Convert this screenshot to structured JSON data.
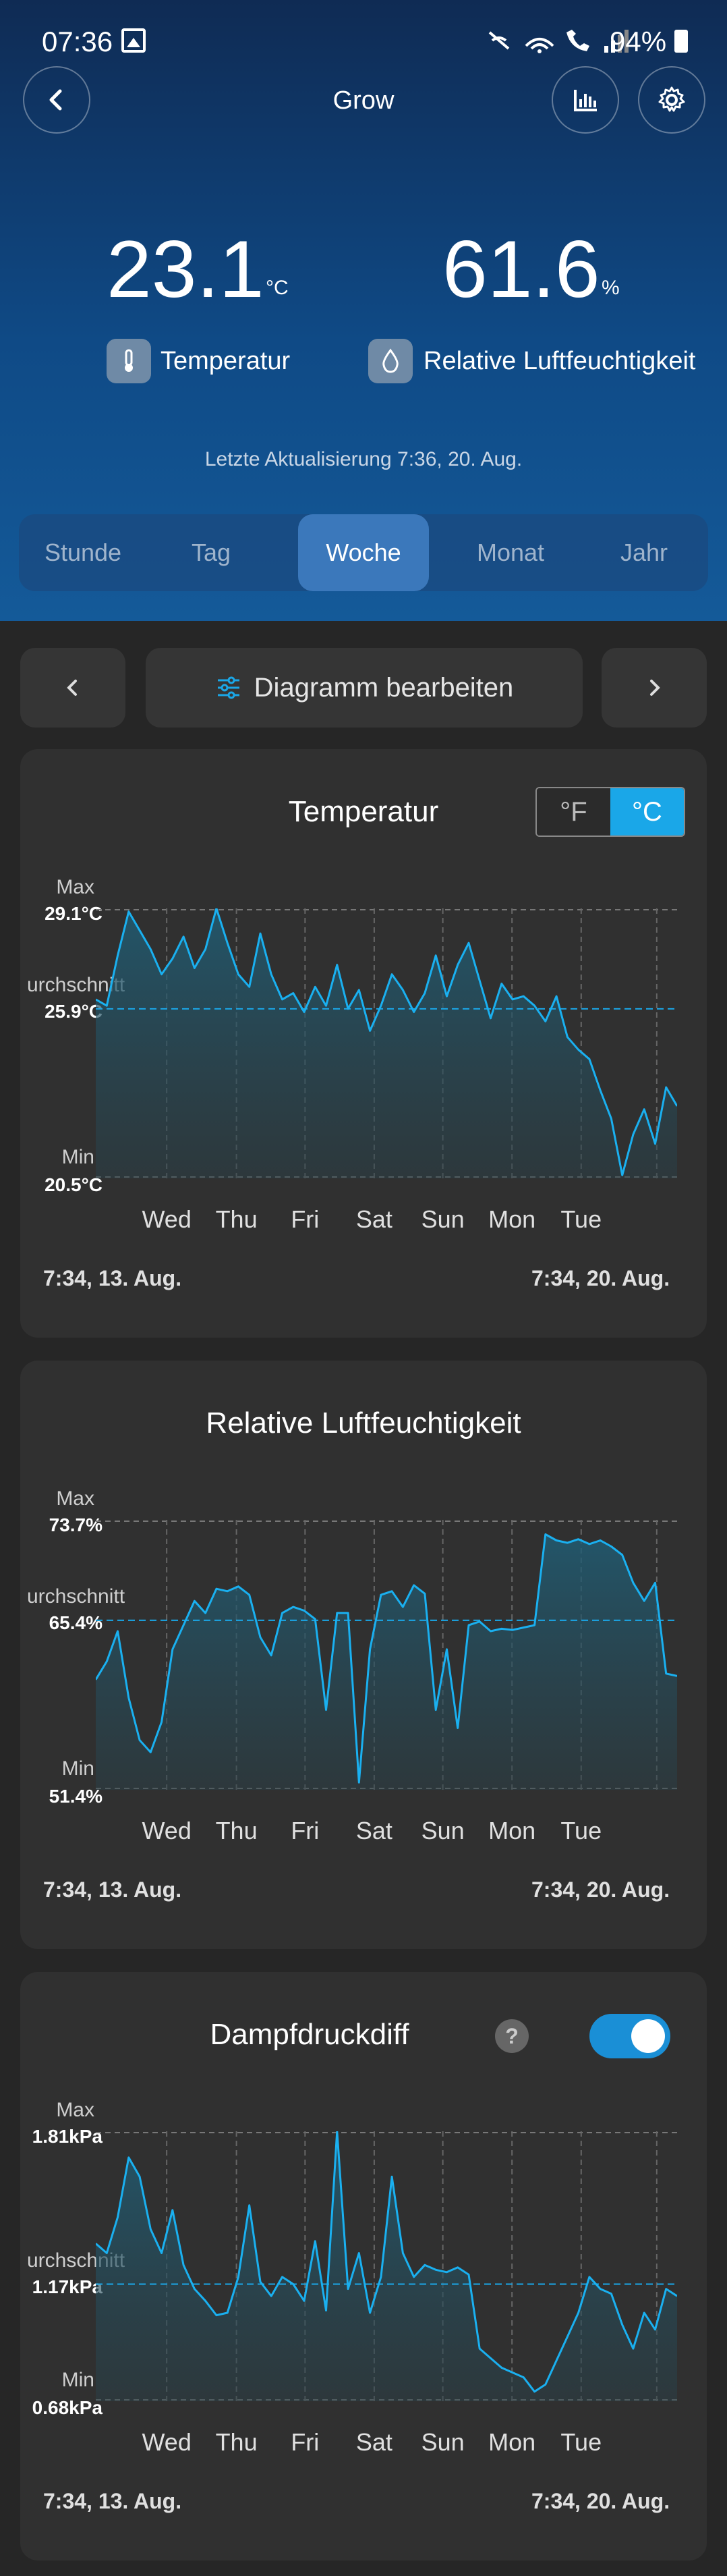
{
  "status_bar": {
    "time": "07:36",
    "battery": "94%"
  },
  "header": {
    "title": "Grow"
  },
  "readings": {
    "temperature": {
      "value": "23.1",
      "unit": "°C",
      "label": "Temperatur"
    },
    "humidity": {
      "value": "61.6",
      "unit": "%",
      "label": "Relative Luftfeuchtigkeit"
    }
  },
  "last_update": "Letzte Aktualisierung 7:36,  20. Aug.",
  "tabs": [
    {
      "label": "Stunde",
      "active": false
    },
    {
      "label": "Tag",
      "active": false
    },
    {
      "label": "Woche",
      "active": true
    },
    {
      "label": "Monat",
      "active": false
    },
    {
      "label": "Jahr",
      "active": false
    }
  ],
  "toolbar": {
    "edit_label": "Diagramm bearbeiten"
  },
  "colors": {
    "accent": "#1aa7e8",
    "line": "#1ab0f0",
    "card": "#303030"
  },
  "range": {
    "start": "7:34,  13. Aug.",
    "end": "7:34,  20. Aug."
  },
  "day_labels": [
    "Wed",
    "Thu",
    "Fri",
    "Sat",
    "Sun",
    "Mon",
    "Tue"
  ],
  "axis_words": {
    "max": "Max",
    "avg": "urchschnitt",
    "min": "Min"
  },
  "unit_toggle": {
    "f": "°F",
    "c": "°C"
  },
  "chart_data": [
    {
      "type": "area",
      "title": "Temperatur",
      "max_label": "29.1°C",
      "avg_label": "25.9°C",
      "min_label": "20.5°C",
      "ylim": [
        20.5,
        29.1
      ],
      "average": 25.9,
      "x": [
        "Tue 7:34",
        "Tue 12:00",
        "Tue 18:00",
        "Wed 0:00",
        "Wed 3:00",
        "Wed 6:00",
        "Wed 9:00",
        "Wed 12:00",
        "Wed 15:00",
        "Wed 18:00",
        "Wed 21:00",
        "Thu 0:00",
        "Thu 3:00",
        "Thu 6:00",
        "Thu 9:00",
        "Thu 12:00",
        "Thu 15:00",
        "Thu 18:00",
        "Thu 21:00",
        "Fri 0:00",
        "Fri 3:00",
        "Fri 6:00",
        "Fri 9:00",
        "Fri 12:00",
        "Fri 15:00",
        "Fri 18:00",
        "Fri 21:00",
        "Sat 0:00",
        "Sat 3:00",
        "Sat 6:00",
        "Sat 9:00",
        "Sat 12:00",
        "Sat 15:00",
        "Sat 18:00",
        "Sat 21:00",
        "Sun 0:00",
        "Sun 3:00",
        "Sun 6:00",
        "Sun 9:00",
        "Sun 12:00",
        "Sun 15:00",
        "Sun 18:00",
        "Sun 21:00",
        "Mon 0:00",
        "Mon 3:00",
        "Mon 6:00",
        "Mon 9:00",
        "Mon 12:00",
        "Mon 15:00",
        "Mon 18:00",
        "Mon 21:00",
        "Tue 0:00",
        "Tue 3:00",
        "Tue 7:34"
      ],
      "values": [
        26.2,
        26.0,
        27.6,
        29.0,
        28.4,
        27.8,
        27.0,
        27.5,
        28.2,
        27.2,
        27.8,
        29.1,
        28.0,
        27.0,
        26.6,
        28.3,
        27.0,
        26.2,
        26.4,
        25.8,
        26.6,
        26.0,
        27.3,
        25.9,
        26.5,
        25.2,
        26.0,
        27.0,
        26.5,
        25.8,
        26.4,
        27.6,
        26.3,
        27.3,
        28.0,
        26.8,
        25.6,
        26.7,
        26.2,
        26.3,
        26.0,
        25.5,
        26.3,
        25.0,
        24.6,
        24.3,
        23.3,
        22.4,
        20.6,
        21.9,
        22.7,
        21.6,
        23.4,
        22.8
      ]
    },
    {
      "type": "area",
      "title": "Relative Luftfeuchtigkeit",
      "max_label": "73.7%",
      "avg_label": "65.4%",
      "min_label": "51.4%",
      "ylim": [
        51.4,
        73.7
      ],
      "average": 65.4,
      "x": [
        "Tue 7:34",
        "Tue 12:00",
        "Tue 18:00",
        "Wed 0:00",
        "Wed 3:00",
        "Wed 6:00",
        "Wed 9:00",
        "Wed 12:00",
        "Wed 15:00",
        "Wed 18:00",
        "Wed 21:00",
        "Thu 0:00",
        "Thu 3:00",
        "Thu 6:00",
        "Thu 9:00",
        "Thu 12:00",
        "Thu 15:00",
        "Thu 18:00",
        "Thu 21:00",
        "Fri 0:00",
        "Fri 3:00",
        "Fri 6:00",
        "Fri 9:00",
        "Fri 12:00",
        "Fri 15:00",
        "Fri 18:00",
        "Fri 21:00",
        "Sat 0:00",
        "Sat 3:00",
        "Sat 6:00",
        "Sat 9:00",
        "Sat 12:00",
        "Sat 15:00",
        "Sat 18:00",
        "Sat 21:00",
        "Sun 0:00",
        "Sun 3:00",
        "Sun 6:00",
        "Sun 9:00",
        "Sun 12:00",
        "Sun 15:00",
        "Sun 18:00",
        "Sun 21:00",
        "Mon 0:00",
        "Mon 3:00",
        "Mon 6:00",
        "Mon 9:00",
        "Mon 12:00",
        "Mon 15:00",
        "Mon 18:00",
        "Mon 21:00",
        "Tue 0:00",
        "Tue 3:00",
        "Tue 7:34"
      ],
      "values": [
        60.5,
        62.0,
        64.5,
        59.0,
        55.5,
        54.5,
        57.0,
        63.0,
        65.0,
        67.0,
        66.0,
        68.0,
        67.8,
        68.2,
        67.5,
        64.0,
        62.5,
        66.0,
        66.5,
        66.2,
        65.5,
        58.0,
        66.0,
        66.0,
        52.0,
        63.0,
        67.5,
        67.8,
        66.5,
        68.3,
        67.6,
        58.0,
        63.0,
        56.5,
        65.0,
        65.3,
        64.5,
        64.7,
        64.6,
        64.8,
        65.0,
        72.5,
        72.0,
        71.8,
        72.1,
        71.7,
        72.0,
        71.5,
        70.8,
        68.5,
        67.0,
        68.5,
        61.0,
        60.8
      ]
    },
    {
      "type": "area",
      "title": "Dampfdruckdiff",
      "max_label": "1.81kPa",
      "avg_label": "1.17kPa",
      "min_label": "0.68kPa",
      "ylim": [
        0.68,
        1.81
      ],
      "average": 1.17,
      "x": [
        "Tue 7:34",
        "Tue 12:00",
        "Tue 18:00",
        "Wed 0:00",
        "Wed 3:00",
        "Wed 6:00",
        "Wed 9:00",
        "Wed 12:00",
        "Wed 15:00",
        "Wed 18:00",
        "Wed 21:00",
        "Thu 0:00",
        "Thu 3:00",
        "Thu 6:00",
        "Thu 9:00",
        "Thu 12:00",
        "Thu 15:00",
        "Thu 18:00",
        "Thu 21:00",
        "Fri 0:00",
        "Fri 3:00",
        "Fri 6:00",
        "Fri 9:00",
        "Fri 12:00",
        "Fri 15:00",
        "Fri 18:00",
        "Fri 21:00",
        "Sat 0:00",
        "Sat 3:00",
        "Sat 6:00",
        "Sat 9:00",
        "Sat 12:00",
        "Sat 15:00",
        "Sat 18:00",
        "Sat 21:00",
        "Sun 0:00",
        "Sun 3:00",
        "Sun 6:00",
        "Sun 9:00",
        "Sun 12:00",
        "Sun 15:00",
        "Sun 18:00",
        "Sun 21:00",
        "Mon 0:00",
        "Mon 3:00",
        "Mon 6:00",
        "Mon 9:00",
        "Mon 12:00",
        "Mon 15:00",
        "Mon 18:00",
        "Mon 21:00",
        "Tue 0:00",
        "Tue 3:00",
        "Tue 7:34"
      ],
      "values": [
        1.34,
        1.3,
        1.45,
        1.7,
        1.62,
        1.4,
        1.3,
        1.48,
        1.25,
        1.15,
        1.1,
        1.04,
        1.05,
        1.2,
        1.5,
        1.18,
        1.12,
        1.2,
        1.17,
        1.1,
        1.35,
        1.06,
        1.81,
        1.15,
        1.3,
        1.05,
        1.2,
        1.62,
        1.3,
        1.2,
        1.25,
        1.23,
        1.22,
        1.24,
        1.21,
        0.9,
        0.86,
        0.82,
        0.8,
        0.78,
        0.72,
        0.75,
        0.85,
        0.95,
        1.05,
        1.2,
        1.15,
        1.13,
        1.0,
        0.9,
        1.05,
        0.98,
        1.15,
        1.12
      ]
    }
  ]
}
